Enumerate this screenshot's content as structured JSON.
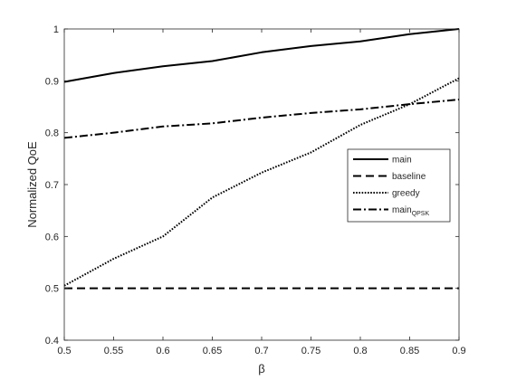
{
  "chart_data": {
    "type": "line",
    "title": "",
    "xlabel": "β",
    "ylabel": "Normalized QoE",
    "xlim": [
      0.5,
      0.9
    ],
    "ylim": [
      0.4,
      1.0
    ],
    "xticks": [
      0.5,
      0.55,
      0.6,
      0.65,
      0.7,
      0.75,
      0.8,
      0.85,
      0.9
    ],
    "xtick_labels": [
      "0.5",
      "0.55",
      "0.6",
      "0.65",
      "0.7",
      "0.75",
      "0.8",
      "0.85",
      "0.9"
    ],
    "yticks": [
      0.4,
      0.5,
      0.6,
      0.7,
      0.8,
      0.9,
      1.0
    ],
    "ytick_labels": [
      "0.4",
      "0.5",
      "0.6",
      "0.7",
      "0.8",
      "0.9",
      "1"
    ],
    "grid": false,
    "legend_position": "right",
    "x": [
      0.5,
      0.55,
      0.6,
      0.65,
      0.7,
      0.75,
      0.8,
      0.85,
      0.9
    ],
    "series": [
      {
        "name": "main",
        "sub": "",
        "style": "solid",
        "color": "#000000",
        "values": [
          0.898,
          0.915,
          0.928,
          0.938,
          0.955,
          0.967,
          0.976,
          0.99,
          1.0
        ]
      },
      {
        "name": "baseline",
        "sub": "",
        "style": "dashed",
        "color": "#000000",
        "values": [
          0.5,
          0.5,
          0.5,
          0.5,
          0.5,
          0.5,
          0.5,
          0.5,
          0.5
        ]
      },
      {
        "name": "greedy",
        "sub": "",
        "style": "dotted",
        "color": "#000000",
        "values": [
          0.505,
          0.557,
          0.6,
          0.675,
          0.723,
          0.762,
          0.815,
          0.855,
          0.905
        ]
      },
      {
        "name": "main",
        "sub": "QPSK",
        "style": "dashdot",
        "color": "#000000",
        "values": [
          0.79,
          0.8,
          0.812,
          0.818,
          0.829,
          0.838,
          0.845,
          0.855,
          0.864
        ]
      }
    ]
  }
}
